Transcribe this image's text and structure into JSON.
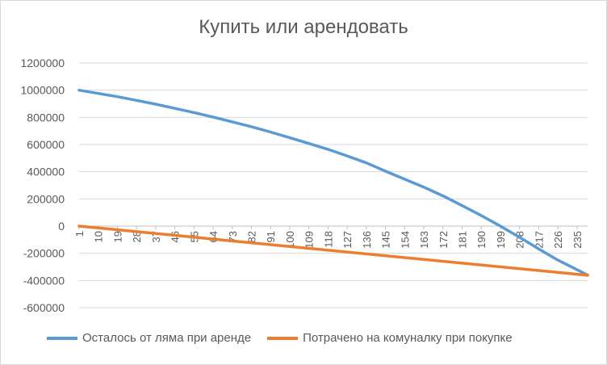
{
  "chart_data": {
    "type": "line",
    "title": "Купить или арендовать",
    "xlabel": "",
    "ylabel": "",
    "ylim": [
      -600000,
      1200000
    ],
    "y_ticks": [
      "1200000",
      "1000000",
      "800000",
      "600000",
      "400000",
      "200000",
      "0",
      "-200000",
      "-400000",
      "-600000"
    ],
    "x_ticks": [
      "1",
      "10",
      "19",
      "28",
      "37",
      "46",
      "55",
      "64",
      "73",
      "82",
      "91",
      "100",
      "109",
      "118",
      "127",
      "136",
      "145",
      "154",
      "163",
      "172",
      "181",
      "190",
      "199",
      "208",
      "217",
      "226",
      "235"
    ],
    "x_max": 240,
    "grid": true,
    "legend_position": "bottom",
    "series": [
      {
        "name": "Осталось от ляма при аренде",
        "color": "#5b9bd5",
        "x": [
          1,
          10,
          19,
          28,
          37,
          46,
          55,
          64,
          73,
          82,
          91,
          100,
          109,
          118,
          127,
          136,
          145,
          154,
          163,
          172,
          181,
          190,
          199,
          208,
          217,
          226,
          235,
          240
        ],
        "values": [
          1000000,
          976000,
          952000,
          925000,
          897000,
          866000,
          835000,
          802000,
          767000,
          731000,
          692000,
          650000,
          608000,
          565000,
          516000,
          465000,
          404000,
          345000,
          287000,
          222000,
          151000,
          78000,
          0,
          -82000,
          -168000,
          -250000,
          -320000,
          -360000
        ]
      },
      {
        "name": "Потрачено на комуналку при покупке",
        "color": "#ed7d31",
        "x": [
          1,
          240
        ],
        "values": [
          0,
          -362000
        ]
      }
    ]
  }
}
